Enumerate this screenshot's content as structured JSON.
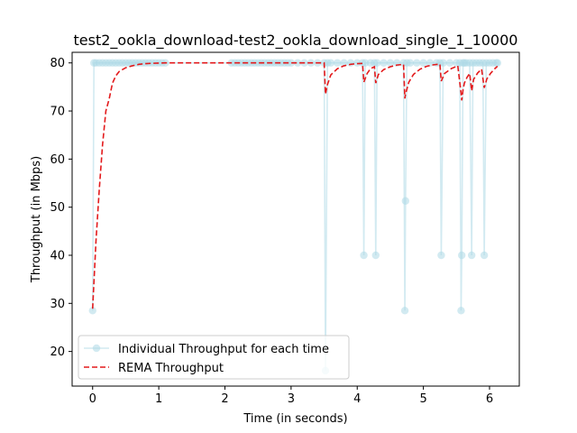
{
  "chart_data": {
    "type": "line",
    "title": "test2_ookla_download-test2_ookla_download_single_1_10000",
    "xlabel": "Time (in seconds)",
    "ylabel": "Throughput (in Mbps)",
    "xlim": [
      -0.31,
      6.45
    ],
    "ylim": [
      12.8,
      82.2
    ],
    "xticks": [
      0,
      1,
      2,
      3,
      4,
      5,
      6
    ],
    "yticks": [
      20,
      30,
      40,
      50,
      60,
      70,
      80
    ],
    "grid": false,
    "legend_position": "lower-left",
    "series": [
      {
        "name": "Individual Throughput for each time",
        "style": "line-with-circle-markers",
        "color": "#add8e6",
        "x": [
          0.0,
          0.02,
          0.05,
          0.1,
          0.15,
          0.2,
          0.25,
          0.3,
          0.35,
          0.4,
          0.45,
          0.5,
          0.55,
          0.6,
          0.65,
          0.7,
          0.75,
          0.8,
          0.85,
          0.9,
          0.95,
          1.0,
          1.05,
          1.1,
          2.1,
          2.15,
          2.2,
          2.25,
          2.3,
          2.35,
          2.4,
          2.45,
          2.5,
          2.55,
          2.6,
          2.65,
          2.7,
          2.75,
          2.8,
          2.85,
          2.9,
          2.95,
          3.0,
          3.1,
          3.2,
          3.3,
          3.4,
          3.5,
          3.52,
          3.55,
          3.6,
          3.7,
          3.8,
          3.9,
          4.0,
          4.08,
          4.1,
          4.12,
          4.2,
          4.26,
          4.28,
          4.3,
          4.4,
          4.5,
          4.6,
          4.7,
          4.72,
          4.73,
          4.75,
          4.8,
          4.9,
          5.0,
          5.1,
          5.2,
          5.25,
          5.27,
          5.3,
          5.4,
          5.5,
          5.55,
          5.57,
          5.58,
          5.6,
          5.62,
          5.65,
          5.7,
          5.73,
          5.75,
          5.8,
          5.85,
          5.9,
          5.92,
          5.95,
          6.0,
          6.05,
          6.1,
          6.12
        ],
        "y": [
          28.5,
          80,
          80,
          80,
          80,
          80,
          80,
          80,
          80,
          80,
          80,
          80,
          80,
          80,
          80,
          80,
          80,
          80,
          80,
          80,
          80,
          80,
          80,
          80,
          80,
          80,
          80,
          80,
          80,
          80,
          80,
          80,
          80,
          80,
          80,
          80,
          80,
          80,
          80,
          80,
          80,
          80,
          80,
          80,
          80,
          80,
          80,
          80,
          16,
          80,
          80,
          80,
          80,
          80,
          80,
          80,
          40,
          80,
          80,
          80,
          40,
          80,
          80,
          80,
          80,
          80,
          28.5,
          51.3,
          80,
          80,
          80,
          80,
          80,
          80,
          80,
          40,
          80,
          80,
          80,
          80,
          28.5,
          40,
          80,
          80,
          80,
          80,
          40,
          80,
          80,
          80,
          80,
          40,
          80,
          80,
          80,
          80,
          80
        ]
      },
      {
        "name": "REMA Throughput",
        "style": "dashed-line",
        "color": "#e31a1c",
        "x": [
          0.0,
          0.05,
          0.1,
          0.15,
          0.2,
          0.25,
          0.3,
          0.35,
          0.4,
          0.5,
          0.6,
          0.7,
          0.8,
          0.9,
          1.0,
          1.1,
          1.5,
          2.0,
          2.5,
          3.0,
          3.5,
          3.52,
          3.55,
          3.6,
          3.7,
          3.8,
          3.9,
          4.0,
          4.08,
          4.1,
          4.15,
          4.2,
          4.26,
          4.28,
          4.32,
          4.4,
          4.5,
          4.6,
          4.7,
          4.72,
          4.73,
          4.78,
          4.85,
          4.95,
          5.05,
          5.15,
          5.25,
          5.27,
          5.32,
          5.42,
          5.52,
          5.57,
          5.58,
          5.6,
          5.62,
          5.66,
          5.7,
          5.73,
          5.76,
          5.82,
          5.88,
          5.92,
          5.96,
          6.02,
          6.08,
          6.12
        ],
        "y": [
          28.9,
          42.8,
          53.6,
          63.0,
          70.0,
          72.5,
          75.8,
          77.3,
          78.2,
          79.0,
          79.4,
          79.7,
          79.85,
          79.92,
          79.96,
          80.0,
          80.0,
          80.0,
          80.0,
          80.0,
          80.0,
          73.5,
          75.5,
          77.5,
          78.8,
          79.4,
          79.7,
          79.85,
          79.9,
          76.0,
          77.8,
          78.8,
          79.2,
          75.8,
          77.6,
          78.6,
          79.2,
          79.55,
          79.7,
          72.6,
          73.5,
          76.0,
          77.6,
          78.7,
          79.3,
          79.6,
          79.75,
          76.2,
          77.8,
          78.8,
          79.4,
          73.7,
          72.2,
          74.5,
          75.8,
          77.0,
          77.8,
          74.2,
          76.6,
          77.9,
          78.7,
          74.8,
          76.7,
          77.9,
          78.8,
          79.3
        ]
      }
    ]
  }
}
